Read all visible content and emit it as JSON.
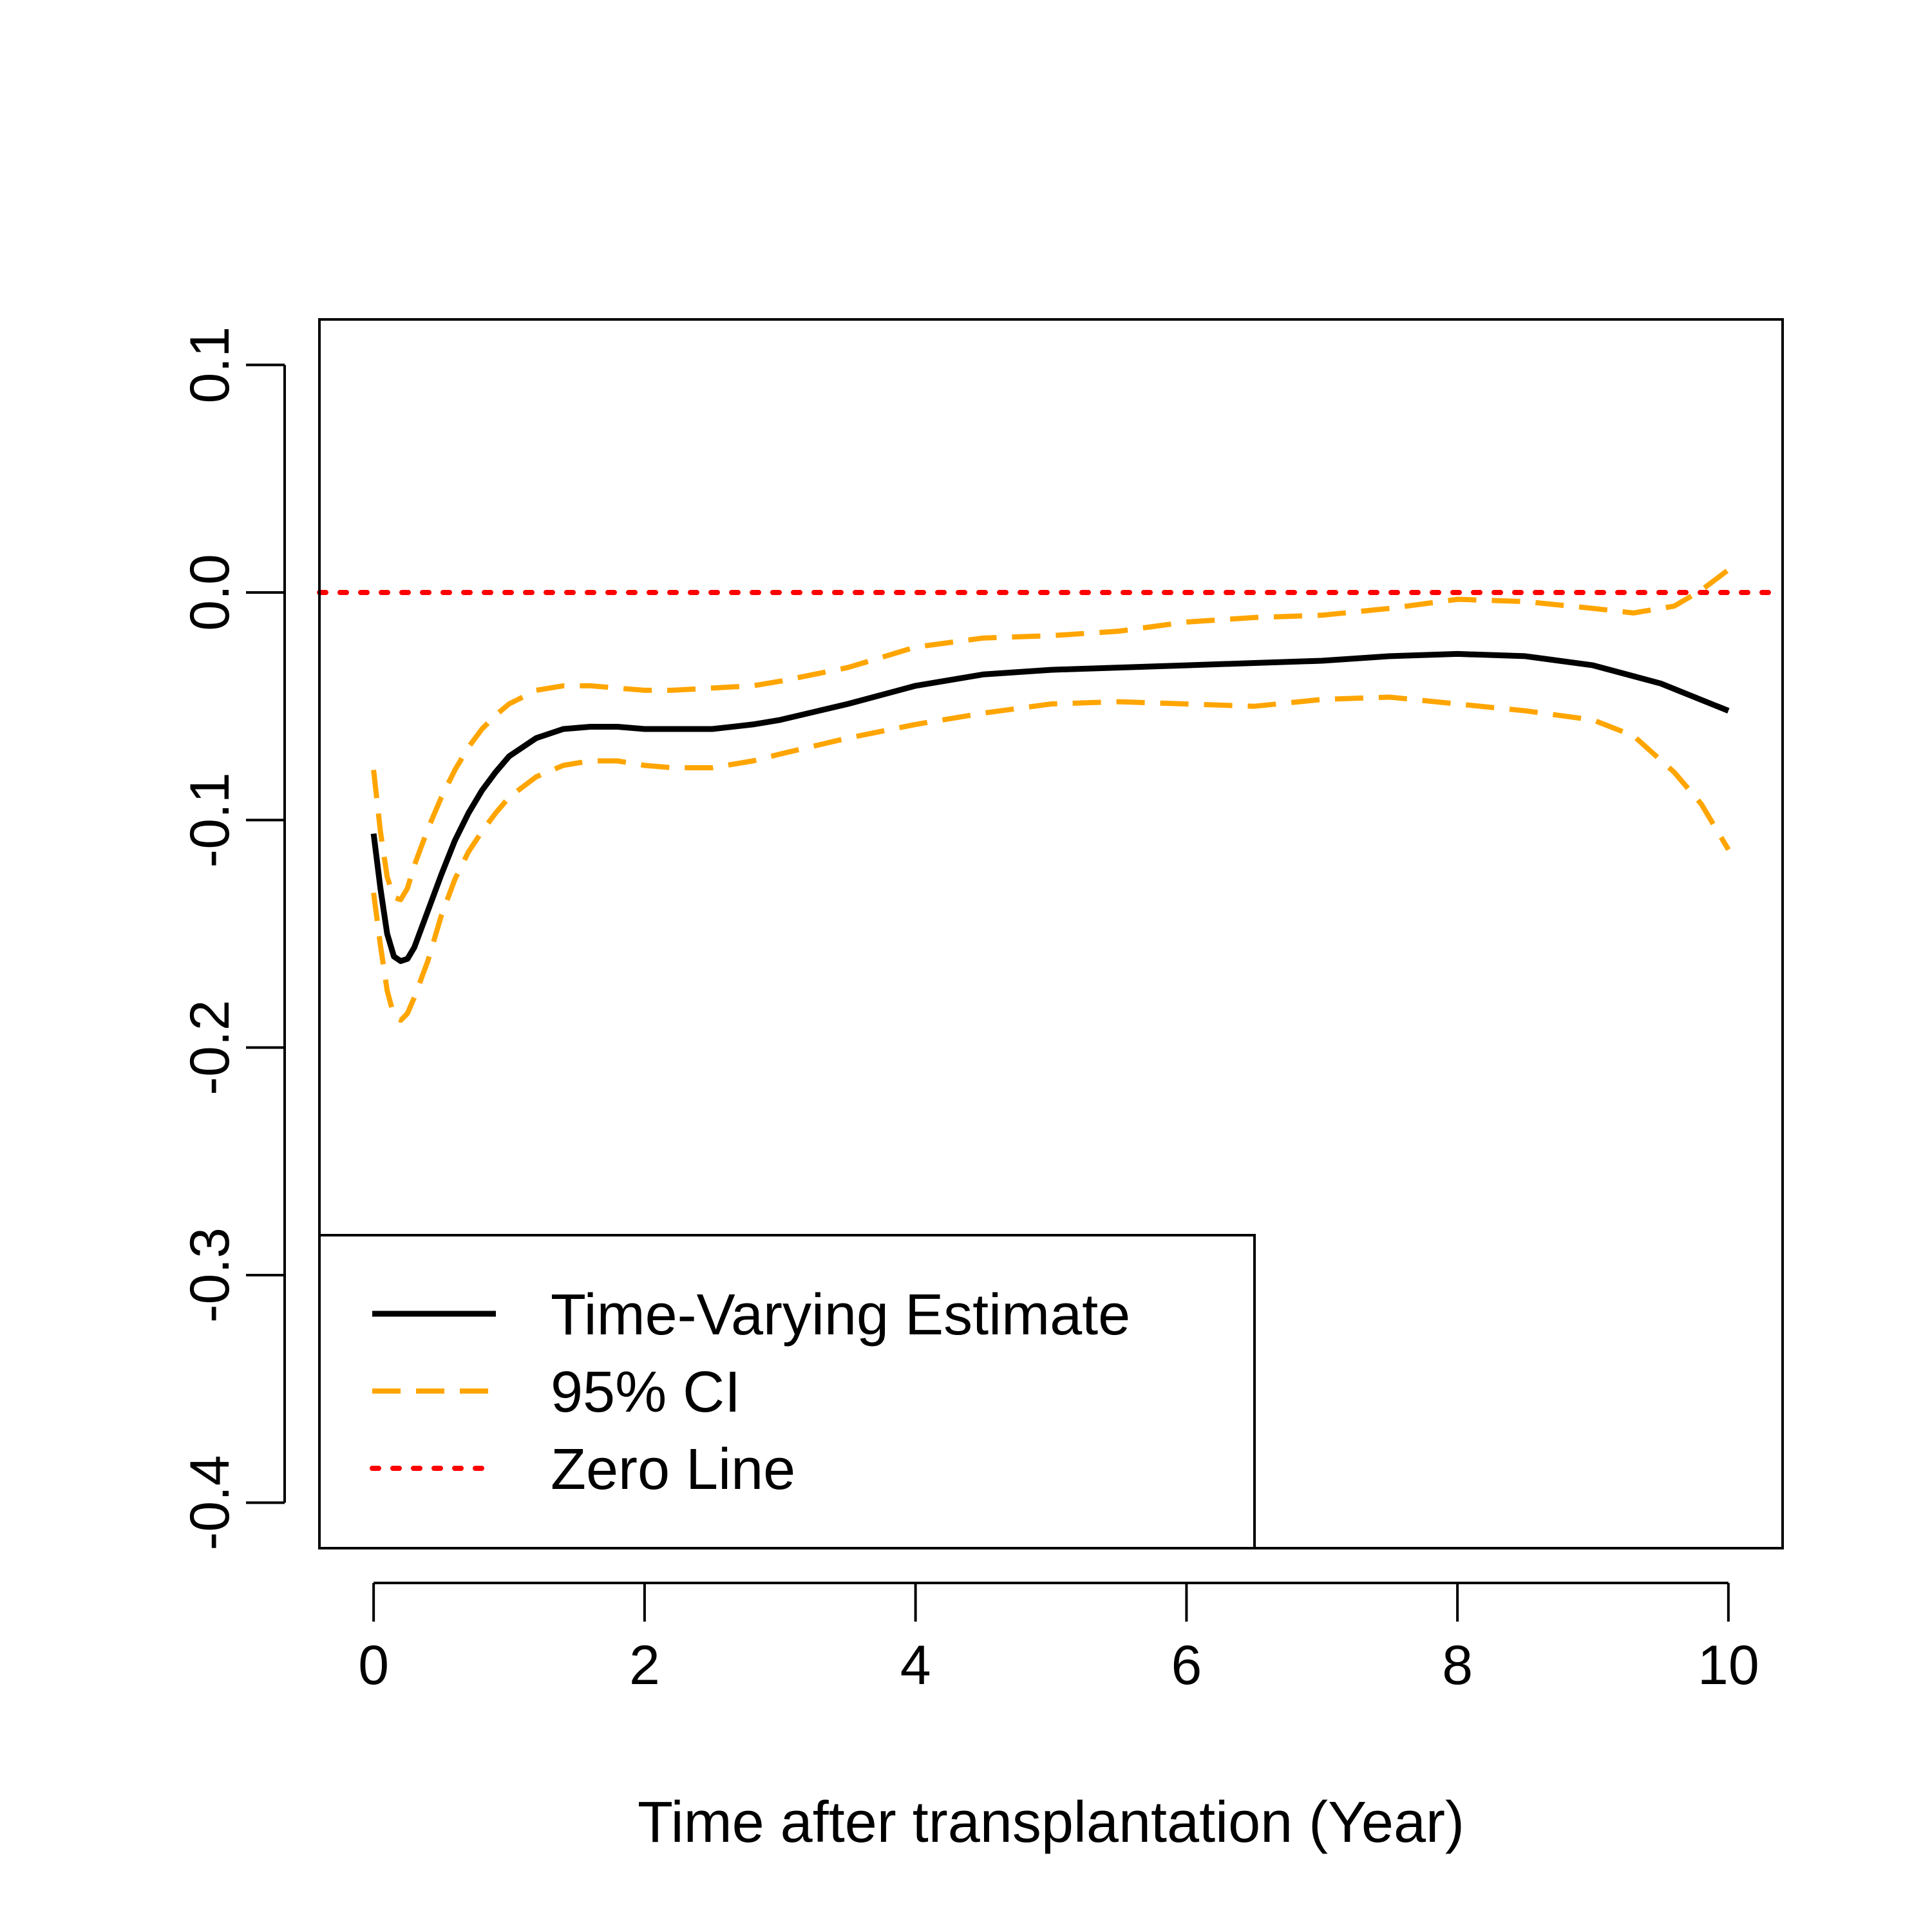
{
  "chart_data": {
    "type": "line",
    "title": "",
    "xlabel": "Time after transplantation (Year)",
    "ylabel": "",
    "xlim": [
      -0.4,
      10.4
    ],
    "ylim": [
      -0.42,
      0.12
    ],
    "xticks": [
      0,
      2,
      4,
      6,
      8,
      10
    ],
    "yticks": [
      -0.4,
      -0.3,
      -0.2,
      -0.1,
      0.0,
      0.1
    ],
    "xtick_labels": [
      "0",
      "2",
      "4",
      "6",
      "8",
      "10"
    ],
    "ytick_labels": [
      "-0.4",
      "-0.3",
      "-0.2",
      "-0.1",
      "0.0",
      "0.1"
    ],
    "legend_position": "bottom-left",
    "series": [
      {
        "name": "Time-Varying Estimate",
        "color": "#000000",
        "style": "solid",
        "x": [
          0.0,
          0.05,
          0.1,
          0.15,
          0.2,
          0.25,
          0.3,
          0.4,
          0.5,
          0.6,
          0.7,
          0.8,
          0.9,
          1.0,
          1.2,
          1.4,
          1.6,
          1.8,
          2.0,
          2.2,
          2.5,
          2.8,
          3.0,
          3.5,
          4.0,
          4.5,
          5.0,
          5.5,
          6.0,
          6.5,
          7.0,
          7.5,
          8.0,
          8.5,
          9.0,
          9.5,
          10.0
        ],
        "y": [
          -0.106,
          -0.13,
          -0.15,
          -0.16,
          -0.162,
          -0.161,
          -0.156,
          -0.14,
          -0.124,
          -0.109,
          -0.097,
          -0.087,
          -0.079,
          -0.072,
          -0.064,
          -0.06,
          -0.059,
          -0.059,
          -0.06,
          -0.06,
          -0.06,
          -0.058,
          -0.056,
          -0.049,
          -0.041,
          -0.036,
          -0.034,
          -0.033,
          -0.032,
          -0.031,
          -0.03,
          -0.028,
          -0.027,
          -0.028,
          -0.032,
          -0.04,
          -0.052
        ]
      },
      {
        "name": "95% CI",
        "color": "#FFA500",
        "style": "dashed",
        "x": [
          0.0,
          0.05,
          0.1,
          0.15,
          0.2,
          0.25,
          0.3,
          0.4,
          0.5,
          0.6,
          0.7,
          0.8,
          0.9,
          1.0,
          1.2,
          1.4,
          1.6,
          1.8,
          2.0,
          2.2,
          2.5,
          2.8,
          3.0,
          3.5,
          4.0,
          4.5,
          5.0,
          5.5,
          6.0,
          6.5,
          7.0,
          7.5,
          8.0,
          8.5,
          9.0,
          9.3,
          9.6,
          9.8,
          10.0
        ],
        "y": [
          -0.078,
          -0.105,
          -0.125,
          -0.134,
          -0.135,
          -0.13,
          -0.12,
          -0.104,
          -0.09,
          -0.078,
          -0.068,
          -0.06,
          -0.054,
          -0.049,
          -0.043,
          -0.041,
          -0.041,
          -0.042,
          -0.043,
          -0.043,
          -0.042,
          -0.041,
          -0.039,
          -0.033,
          -0.024,
          -0.02,
          -0.019,
          -0.017,
          -0.013,
          -0.011,
          -0.01,
          -0.007,
          -0.003,
          -0.004,
          -0.007,
          -0.009,
          -0.006,
          0.001,
          0.01
        ]
      },
      {
        "name": "95% CI",
        "color": "#FFA500",
        "style": "dashed",
        "x": [
          0.0,
          0.05,
          0.1,
          0.15,
          0.2,
          0.25,
          0.3,
          0.4,
          0.5,
          0.6,
          0.7,
          0.8,
          0.9,
          1.0,
          1.2,
          1.4,
          1.6,
          1.8,
          2.0,
          2.2,
          2.5,
          2.8,
          3.0,
          3.5,
          4.0,
          4.5,
          5.0,
          5.5,
          6.0,
          6.5,
          7.0,
          7.5,
          8.0,
          8.5,
          9.0,
          9.3,
          9.6,
          9.8,
          10.0
        ],
        "y": [
          -0.132,
          -0.155,
          -0.175,
          -0.186,
          -0.188,
          -0.185,
          -0.178,
          -0.162,
          -0.142,
          -0.126,
          -0.114,
          -0.105,
          -0.097,
          -0.09,
          -0.081,
          -0.076,
          -0.074,
          -0.074,
          -0.076,
          -0.077,
          -0.077,
          -0.074,
          -0.071,
          -0.064,
          -0.058,
          -0.053,
          -0.049,
          -0.048,
          -0.049,
          -0.05,
          -0.047,
          -0.046,
          -0.049,
          -0.052,
          -0.056,
          -0.063,
          -0.079,
          -0.093,
          -0.113
        ]
      },
      {
        "name": "Zero Line",
        "color": "#FF0000",
        "style": "dotted",
        "x": [
          -0.4,
          10.4
        ],
        "y": [
          0.0,
          0.0
        ]
      }
    ],
    "legend": [
      {
        "label": "Time-Varying Estimate",
        "color": "#000000",
        "style": "solid"
      },
      {
        "label": "95% CI",
        "color": "#FFA500",
        "style": "dashed"
      },
      {
        "label": "Zero Line",
        "color": "#FF0000",
        "style": "dotted"
      }
    ]
  }
}
